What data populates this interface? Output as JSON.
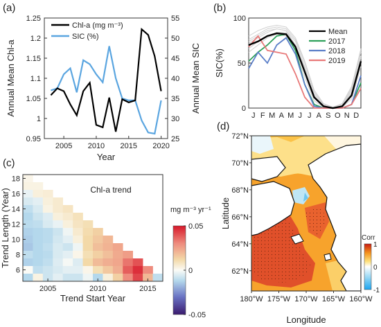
{
  "panels": {
    "a": {
      "label": "(a)"
    },
    "b": {
      "label": "(b)"
    },
    "c": {
      "label": "(c)"
    },
    "d": {
      "label": "(d)"
    }
  },
  "chart_data": [
    {
      "panel": "a",
      "type": "line",
      "xlabel": "Year",
      "ylabel_left": "Annual Mean Chl-a",
      "ylabel_right": "Annual Mean SIC",
      "xlim": [
        2002,
        2021
      ],
      "ylim_left": [
        0.95,
        1.25
      ],
      "ylim_right": [
        25,
        55
      ],
      "xticks": [
        "2005",
        "2010",
        "2015",
        "2020"
      ],
      "yticks_left": [
        "0.95",
        "1",
        "1.05",
        "1.1",
        "1.15",
        "1.2",
        "1.25"
      ],
      "yticks_right": [
        "25",
        "30",
        "35",
        "40",
        "45",
        "50",
        "55"
      ],
      "legend": [
        "Chl-a (mg m⁻³)",
        "SIC (%)"
      ],
      "colors": {
        "chla": "#000000",
        "sic": "#5aa5e0"
      },
      "x": [
        2003,
        2004,
        2005,
        2006,
        2007,
        2008,
        2009,
        2010,
        2011,
        2012,
        2013,
        2014,
        2015,
        2016,
        2017,
        2018,
        2019,
        2020
      ],
      "series": [
        {
          "name": "Chl-a (mg m⁻³)",
          "axis": "left",
          "values": [
            1.058,
            1.075,
            1.068,
            1.035,
            1.008,
            1.068,
            1.089,
            0.984,
            0.978,
            1.052,
            0.967,
            1.048,
            1.04,
            1.045,
            1.222,
            1.208,
            1.155,
            1.068
          ]
        },
        {
          "name": "SIC (%)",
          "axis": "right",
          "values": [
            37,
            37.5,
            41,
            42.5,
            36.5,
            44.5,
            43.5,
            41,
            39,
            48,
            40,
            35,
            34.5,
            34.5,
            29.5,
            26.5,
            26.2,
            34.5
          ]
        }
      ]
    },
    {
      "panel": "b",
      "type": "line",
      "ylabel": "SIC(%)",
      "ylim": [
        0,
        100
      ],
      "yticks": [
        "0",
        "50",
        "100"
      ],
      "xticks": [
        "J",
        "F",
        "M",
        "A",
        "M",
        "J",
        "J",
        "A",
        "S",
        "O",
        "N",
        "D"
      ],
      "legend": [
        "Mean",
        "2017",
        "2018",
        "2019"
      ],
      "colors": {
        "Mean": "#000000",
        "2017": "#2ca05a",
        "2018": "#5a7ec8",
        "2019": "#e87878",
        "background": "#d0d0d0"
      },
      "series": [
        {
          "name": "Mean",
          "values": [
            70,
            74,
            80,
            83,
            82,
            68,
            40,
            12,
            2,
            0,
            2,
            14,
            52
          ]
        },
        {
          "name": "2017",
          "values": [
            52,
            62,
            70,
            80,
            82,
            64,
            26,
            4,
            0,
            0,
            0,
            4,
            28
          ]
        },
        {
          "name": "2018",
          "values": [
            44,
            62,
            50,
            70,
            78,
            60,
            26,
            2,
            0,
            0,
            0,
            4,
            36
          ]
        },
        {
          "name": "2019",
          "values": [
            68,
            80,
            64,
            62,
            60,
            38,
            12,
            0,
            0,
            0,
            0,
            4,
            22
          ]
        }
      ],
      "background_years": [
        [
          72,
          78,
          84,
          88,
          86,
          74,
          46,
          16,
          3,
          0,
          3,
          20,
          62
        ],
        [
          76,
          82,
          88,
          90,
          88,
          76,
          50,
          18,
          4,
          1,
          4,
          22,
          66
        ],
        [
          66,
          74,
          80,
          84,
          84,
          70,
          42,
          14,
          2,
          0,
          2,
          16,
          58
        ],
        [
          80,
          86,
          90,
          92,
          90,
          78,
          52,
          20,
          5,
          1,
          5,
          24,
          64
        ],
        [
          62,
          70,
          78,
          82,
          80,
          64,
          34,
          8,
          1,
          0,
          1,
          10,
          46
        ],
        [
          74,
          80,
          86,
          88,
          86,
          70,
          44,
          12,
          2,
          0,
          2,
          18,
          56
        ]
      ]
    },
    {
      "panel": "c",
      "type": "heatmap",
      "title": "Chl-a trend",
      "xlabel": "Trend Start Year",
      "ylabel": "Trend Length (Year)",
      "xticks": [
        "2005",
        "2010",
        "2015"
      ],
      "yticks": [
        "6",
        "8",
        "10",
        "12",
        "14",
        "16",
        "18"
      ],
      "xlim": [
        2002.5,
        2016.5
      ],
      "ylim": [
        4.5,
        18.5
      ],
      "colorbar": {
        "label": "mg m⁻³ yr⁻¹",
        "ticks": [
          "0.05",
          "0",
          "-0.05"
        ],
        "range": [
          -0.05,
          0.05
        ]
      },
      "start_years": [
        2003,
        2004,
        2005,
        2006,
        2007,
        2008,
        2009,
        2010,
        2011,
        2012,
        2013,
        2014,
        2015,
        2016
      ],
      "lengths": [
        18,
        17,
        16,
        15,
        14,
        13,
        12,
        11,
        10,
        9,
        8,
        7,
        6,
        5
      ],
      "values_by_length": [
        [
          0.002
        ],
        [
          0.003,
          0.003
        ],
        [
          -0.003,
          0.004,
          0.005
        ],
        [
          -0.006,
          -0.004,
          0.004,
          0.006
        ],
        [
          -0.01,
          -0.006,
          0.003,
          0.006,
          0.008
        ],
        [
          -0.012,
          -0.008,
          -0.005,
          0.004,
          0.006,
          0.009
        ],
        [
          -0.011,
          -0.01,
          -0.006,
          -0.003,
          0.004,
          0.008,
          0.01
        ],
        [
          -0.013,
          -0.012,
          -0.011,
          -0.008,
          -0.002,
          0.006,
          0.011,
          0.014
        ],
        [
          -0.014,
          -0.012,
          -0.011,
          -0.007,
          -0.004,
          0.004,
          0.012,
          0.016,
          0.02
        ],
        [
          -0.015,
          -0.012,
          -0.01,
          -0.006,
          -0.008,
          -0.002,
          0.012,
          0.018,
          0.021,
          0.024
        ],
        [
          -0.01,
          -0.012,
          -0.011,
          -0.006,
          -0.004,
          0.002,
          0.01,
          0.014,
          0.018,
          0.023,
          0.026
        ],
        [
          -0.013,
          -0.012,
          -0.01,
          -0.005,
          -0.001,
          -0.005,
          0.012,
          0.019,
          0.022,
          0.024,
          0.034,
          0.04
        ],
        [
          0.0,
          -0.01,
          -0.008,
          -0.006,
          -0.004,
          -0.004,
          0.002,
          0.01,
          0.016,
          0.022,
          0.038,
          0.046,
          0.03
        ],
        [
          -0.012,
          0.003,
          -0.008,
          -0.004,
          -0.008,
          -0.008,
          -0.002,
          -0.012,
          0.004,
          0.014,
          0.03,
          0.042,
          0.02,
          -0.01
        ]
      ]
    },
    {
      "panel": "d",
      "type": "heatmap",
      "xlabel": "Longitude",
      "ylabel": "Latitude",
      "xticks": [
        "180°W",
        "175°W",
        "170°W",
        "165°W",
        "160°W"
      ],
      "yticks": [
        "72°N",
        "70°N",
        "68°N",
        "66°N",
        "64°N",
        "62°N"
      ],
      "xlim": [
        -180,
        -160
      ],
      "ylim": [
        60.5,
        72
      ],
      "colorbar": {
        "label": "Corr",
        "ticks": [
          "1",
          "0",
          "-1"
        ],
        "range": [
          -1,
          1
        ]
      }
    }
  ]
}
